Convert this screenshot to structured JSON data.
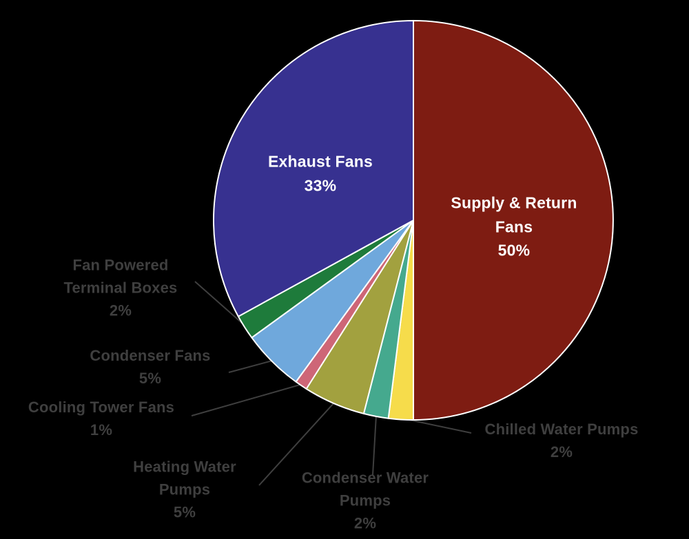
{
  "background_color": "#000000",
  "chart_data": {
    "type": "pie",
    "title": "",
    "legend": "none",
    "start_angle_deg": -90,
    "direction": "clockwise",
    "stroke_color": "#ffffff",
    "inside_label_color": "#ffffff",
    "outside_label_color": "#3f3f3f",
    "leader_line_color": "#3f3f3f",
    "slices": [
      {
        "label": "Supply & Return Fans",
        "value": 50,
        "pct": "50%",
        "color": "#7e1c12",
        "label_position": "inside"
      },
      {
        "label": "Chilled Water Pumps",
        "value": 2,
        "pct": "2%",
        "color": "#f6dc4b",
        "label_position": "outside"
      },
      {
        "label": "Condenser Water Pumps",
        "value": 2,
        "pct": "2%",
        "color": "#45a98e",
        "label_position": "outside"
      },
      {
        "label": "Heating Water Pumps",
        "value": 5,
        "pct": "5%",
        "color": "#a2a13f",
        "label_position": "outside"
      },
      {
        "label": "Cooling Tower Fans",
        "value": 1,
        "pct": "1%",
        "color": "#ce6677",
        "label_position": "outside"
      },
      {
        "label": "Condenser Fans",
        "value": 5,
        "pct": "5%",
        "color": "#6fa8dc",
        "label_position": "outside"
      },
      {
        "label": "Fan Powered Terminal Boxes",
        "value": 2,
        "pct": "2%",
        "color": "#1e7b3b",
        "label_position": "outside"
      },
      {
        "label": "Exhaust Fans",
        "value": 33,
        "pct": "33%",
        "color": "#373190",
        "label_position": "inside"
      }
    ]
  }
}
